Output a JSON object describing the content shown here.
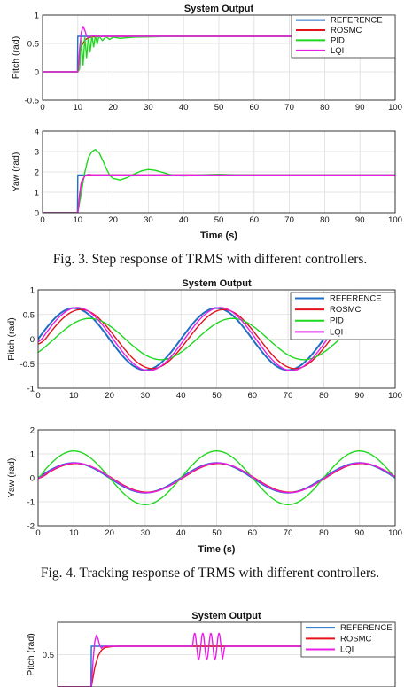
{
  "colors": {
    "reference": "#1f6fc5",
    "rosmc": "#e3131b",
    "pid": "#1ed81e",
    "lqi": "#e81ee8",
    "grid": "#dddddd",
    "axis": "#222222"
  },
  "figures": [
    {
      "title": "System Output",
      "caption": "Fig. 3. Step response of TRMS with different controllers.",
      "legend": [
        "REFERENCE",
        "ROSMC",
        "PID",
        "LQI"
      ]
    },
    {
      "title": "System Output",
      "caption": "Fig. 4. Tracking response of TRMS with different controllers.",
      "legend": [
        "REFERENCE",
        "ROSMC",
        "PID",
        "LQI"
      ]
    },
    {
      "title": "System Output",
      "caption": "",
      "legend": [
        "REFERENCE",
        "ROSMC",
        "LQI"
      ]
    }
  ],
  "chart_data": [
    {
      "type": "line",
      "title": "System Output",
      "xlabel": "",
      "ylabel": "Pitch (rad)",
      "xlim": [
        0,
        100
      ],
      "ylim": [
        -0.5,
        1
      ],
      "xticks": [
        0,
        10,
        20,
        30,
        40,
        50,
        60,
        70,
        80,
        90,
        100
      ],
      "yticks": [
        -0.5,
        0,
        0.5,
        1
      ],
      "grid": true,
      "legend_position": "top-right",
      "series": [
        {
          "name": "REFERENCE",
          "color": "#1f6fc5",
          "x": [
            0,
            9.9,
            10,
            100
          ],
          "y": [
            0,
            0,
            0.625,
            0.625
          ]
        },
        {
          "name": "ROSMC",
          "color": "#e3131b",
          "x": [
            0,
            10,
            10.5,
            11,
            12,
            13,
            14,
            16,
            18,
            20,
            100
          ],
          "y": [
            0,
            0,
            0.3,
            0.45,
            0.56,
            0.6,
            0.615,
            0.622,
            0.624,
            0.625,
            0.625
          ]
        },
        {
          "name": "PID",
          "color": "#1ed81e",
          "x": [
            0,
            10,
            10.5,
            11,
            11.5,
            12,
            12.5,
            13,
            13.5,
            14,
            14.5,
            15,
            15.5,
            16,
            17,
            18,
            19,
            20,
            22,
            24,
            26,
            28,
            30,
            34,
            38,
            100
          ],
          "y": [
            0,
            0,
            0.05,
            0.55,
            0.12,
            0.6,
            0.25,
            0.62,
            0.35,
            0.64,
            0.44,
            0.64,
            0.49,
            0.63,
            0.55,
            0.62,
            0.57,
            0.61,
            0.59,
            0.6,
            0.61,
            0.612,
            0.615,
            0.62,
            0.623,
            0.625
          ]
        },
        {
          "name": "LQI",
          "color": "#e81ee8",
          "x": [
            0,
            10,
            10.5,
            11,
            11.5,
            12,
            12.5,
            13,
            13.5,
            14,
            15,
            16,
            18,
            20,
            100
          ],
          "y": [
            0,
            0,
            0.4,
            0.7,
            0.8,
            0.73,
            0.63,
            0.6,
            0.62,
            0.635,
            0.63,
            0.625,
            0.625,
            0.625,
            0.625
          ]
        }
      ]
    },
    {
      "type": "line",
      "title": "",
      "xlabel": "Time (s)",
      "ylabel": "Yaw (rad)",
      "xlim": [
        0,
        100
      ],
      "ylim": [
        0,
        4
      ],
      "xticks": [
        0,
        10,
        20,
        30,
        40,
        50,
        60,
        70,
        80,
        90,
        100
      ],
      "yticks": [
        0,
        1,
        2,
        3,
        4
      ],
      "grid": true,
      "series": [
        {
          "name": "REFERENCE",
          "color": "#1f6fc5",
          "x": [
            0,
            9.9,
            10,
            100
          ],
          "y": [
            0,
            0,
            1.85,
            1.85
          ]
        },
        {
          "name": "ROSMC",
          "color": "#e3131b",
          "x": [
            0,
            10,
            10.5,
            11,
            12,
            13,
            14,
            16,
            100
          ],
          "y": [
            0,
            0,
            0.9,
            1.5,
            1.8,
            1.84,
            1.85,
            1.85,
            1.85
          ]
        },
        {
          "name": "PID",
          "color": "#1ed81e",
          "x": [
            0,
            10,
            11,
            12,
            13,
            14,
            15,
            16,
            17,
            18,
            19,
            20,
            22,
            24,
            26,
            28,
            30,
            32,
            34,
            36,
            38,
            40,
            42,
            45,
            50,
            55,
            60,
            100
          ],
          "y": [
            0,
            0,
            1.0,
            2.0,
            2.7,
            3.0,
            3.1,
            2.95,
            2.6,
            2.2,
            1.85,
            1.68,
            1.6,
            1.72,
            1.9,
            2.05,
            2.12,
            2.08,
            1.98,
            1.88,
            1.82,
            1.8,
            1.82,
            1.86,
            1.88,
            1.86,
            1.85,
            1.85
          ]
        },
        {
          "name": "LQI",
          "color": "#e81ee8",
          "x": [
            0,
            10,
            10.5,
            11,
            12,
            13,
            14,
            16,
            100
          ],
          "y": [
            0,
            0,
            0.8,
            1.45,
            1.82,
            1.88,
            1.86,
            1.85,
            1.85
          ]
        }
      ]
    },
    {
      "type": "line",
      "title": "System Output",
      "xlabel": "",
      "ylabel": "Pitch (rad)",
      "xlim": [
        0,
        100
      ],
      "ylim": [
        -1,
        1
      ],
      "xticks": [
        0,
        10,
        20,
        30,
        40,
        50,
        60,
        70,
        80,
        90,
        100
      ],
      "yticks": [
        -1,
        -0.5,
        0,
        0.5,
        1
      ],
      "grid": true,
      "legend_position": "top-right",
      "series": [
        {
          "name": "REFERENCE",
          "color": "#1f6fc5",
          "wave": {
            "amp": 0.63,
            "period": 40,
            "phase_deg": 0,
            "ramp": 0
          }
        },
        {
          "name": "ROSMC",
          "color": "#e3131b",
          "wave": {
            "amp": 0.6,
            "period": 40,
            "phase_deg": 18,
            "ramp": 3
          }
        },
        {
          "name": "PID",
          "color": "#1ed81e",
          "wave": {
            "amp": 0.42,
            "period": 40,
            "phase_deg": 40,
            "ramp": 0
          }
        },
        {
          "name": "LQI",
          "color": "#e81ee8",
          "wave": {
            "amp": 0.64,
            "period": 40,
            "phase_deg": 9,
            "ramp": 2
          }
        }
      ]
    },
    {
      "type": "line",
      "title": "",
      "xlabel": "Time (s)",
      "ylabel": "Yaw (rad)",
      "xlim": [
        0,
        100
      ],
      "ylim": [
        -2,
        2
      ],
      "xticks": [
        0,
        10,
        20,
        30,
        40,
        50,
        60,
        70,
        80,
        90,
        100
      ],
      "yticks": [
        -2,
        -1,
        0,
        1,
        2
      ],
      "grid": true,
      "series": [
        {
          "name": "REFERENCE",
          "color": "#1f6fc5",
          "wave": {
            "amp": 0.62,
            "period": 40,
            "phase_deg": 0,
            "ramp": 0
          }
        },
        {
          "name": "ROSMC",
          "color": "#e3131b",
          "wave": {
            "amp": 0.6,
            "period": 40,
            "phase_deg": 5,
            "ramp": 3
          }
        },
        {
          "name": "PID",
          "color": "#1ed81e",
          "wave": {
            "amp": 1.12,
            "period": 40,
            "phase_deg": 0,
            "ramp": 2
          }
        },
        {
          "name": "LQI",
          "color": "#e81ee8",
          "wave": {
            "amp": 0.62,
            "period": 40,
            "phase_deg": 3,
            "ramp": 2
          }
        }
      ]
    },
    {
      "type": "line",
      "title": "System Output",
      "xlabel": "",
      "ylabel": "Pitch (rad)",
      "xlim": [
        0,
        100
      ],
      "ylim": [
        0,
        1
      ],
      "xticks": [],
      "yticks": [
        0.5
      ],
      "grid": true,
      "legend_position": "top-right",
      "series": [
        {
          "name": "REFERENCE",
          "color": "#1f6fc5",
          "x": [
            0,
            9.9,
            10,
            100
          ],
          "y": [
            0,
            0,
            0.63,
            0.63
          ]
        },
        {
          "name": "ROSMC",
          "color": "#e3131b",
          "x": [
            0,
            10,
            11,
            12,
            13,
            14,
            16,
            18,
            100
          ],
          "y": [
            0,
            0,
            0.3,
            0.48,
            0.57,
            0.61,
            0.625,
            0.63,
            0.63
          ]
        },
        {
          "name": "LQI",
          "color": "#e81ee8",
          "x": [
            0,
            10,
            10.5,
            11,
            11.5,
            12,
            12.5,
            13,
            13.5,
            14,
            15,
            16,
            18,
            20,
            100
          ],
          "y": [
            0,
            0,
            0.4,
            0.7,
            0.8,
            0.74,
            0.64,
            0.6,
            0.62,
            0.635,
            0.63,
            0.63,
            0.63,
            0.63,
            0.63
          ],
          "disturbance": {
            "start": 40,
            "end": 49,
            "amp": 0.2,
            "period": 2.4
          }
        }
      ]
    }
  ]
}
